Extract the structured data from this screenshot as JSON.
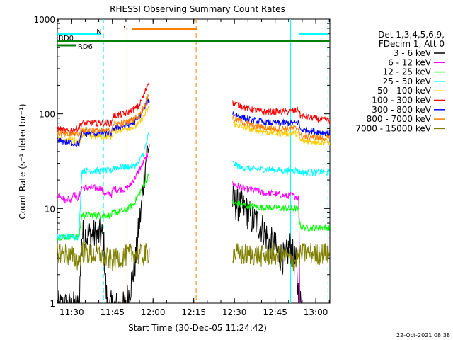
{
  "chart_data": {
    "type": "line",
    "title": "RHESSI Observing Summary Count Rates",
    "xlabel": "Start Time (30-Dec-05 11:24:42)",
    "ylabel": "Count Rate (s⁻¹ detector⁻¹)",
    "y_scale": "log",
    "ylim": [
      1,
      1000
    ],
    "xlim_minutes_from_start": [
      0,
      100.5
    ],
    "x_ticks": [
      {
        "label": "11:30",
        "t": 5.3
      },
      {
        "label": "11:45",
        "t": 20.3
      },
      {
        "label": "12:00",
        "t": 35.3
      },
      {
        "label": "12:15",
        "t": 50.3
      },
      {
        "label": "12:30",
        "t": 65.3
      },
      {
        "label": "12:45",
        "t": 80.3
      },
      {
        "label": "13:00",
        "t": 95.3
      }
    ],
    "y_ticks": [
      {
        "label": "1",
        "v": 1
      },
      {
        "label": "10",
        "v": 10
      },
      {
        "label": "100",
        "v": 100
      },
      {
        "label": "1000",
        "v": 1000
      }
    ],
    "legend_header": [
      "Det 1,3,4,5,6,9,",
      "FDecim 1, Att 0"
    ],
    "series": [
      {
        "name": "3 - 6 keV",
        "color": "#000000",
        "values": [
          [
            0,
            0.9
          ],
          [
            8,
            0.9
          ],
          [
            9,
            5.2
          ],
          [
            16,
            5.2
          ],
          [
            17,
            5.0
          ],
          [
            17.5,
            2.5
          ],
          [
            18,
            1.3
          ],
          [
            18.5,
            0.9
          ],
          [
            25,
            0.9
          ],
          [
            27,
            1.5
          ],
          [
            29,
            3
          ],
          [
            30,
            6
          ],
          [
            31,
            10
          ],
          [
            32,
            22
          ],
          [
            33,
            40
          ],
          [
            33.6,
            45
          ],
          [
            65,
            12
          ],
          [
            66,
            11
          ],
          [
            68,
            10.5
          ],
          [
            70,
            9
          ],
          [
            72,
            7.5
          ],
          [
            74,
            7
          ],
          [
            76,
            6
          ],
          [
            78,
            4.5
          ],
          [
            80,
            4
          ],
          [
            81,
            3.5
          ],
          [
            82,
            3.2
          ],
          [
            83,
            3
          ],
          [
            84,
            2.8
          ],
          [
            85,
            3.5
          ],
          [
            86,
            4
          ],
          [
            87,
            3
          ],
          [
            88,
            2.6
          ],
          [
            89,
            1.2
          ],
          [
            90,
            0.9
          ]
        ]
      },
      {
        "name": "6 - 12 keV",
        "color": "#ff00ff",
        "values": [
          [
            0,
            14
          ],
          [
            1,
            14
          ],
          [
            3,
            12
          ],
          [
            4,
            13
          ],
          [
            5,
            12
          ],
          [
            6,
            15
          ],
          [
            7,
            13
          ],
          [
            8,
            13
          ],
          [
            9,
            16.5
          ],
          [
            14,
            16.5
          ],
          [
            16,
            16.5
          ],
          [
            17,
            15
          ],
          [
            18,
            14
          ],
          [
            19,
            14.5
          ],
          [
            20,
            14
          ],
          [
            20.5,
            16
          ],
          [
            25,
            16
          ],
          [
            27,
            18
          ],
          [
            29,
            22
          ],
          [
            31,
            28
          ],
          [
            33,
            36
          ],
          [
            33.6,
            37
          ],
          [
            65,
            18
          ],
          [
            67,
            17
          ],
          [
            70,
            16
          ],
          [
            73,
            15.5
          ],
          [
            76,
            14.5
          ],
          [
            79,
            14.5
          ],
          [
            82,
            14
          ],
          [
            84,
            13.5
          ],
          [
            86,
            13.8
          ],
          [
            88,
            13.5
          ],
          [
            89,
            13
          ],
          [
            89.5,
            0.9
          ],
          [
            100.5,
            0.9
          ]
        ]
      },
      {
        "name": "12 - 25 keV",
        "color": "#00ff00",
        "values": [
          [
            0,
            5
          ],
          [
            8,
            5
          ],
          [
            9,
            8.5
          ],
          [
            16,
            8.5
          ],
          [
            20,
            8.5
          ],
          [
            20.5,
            9
          ],
          [
            25,
            9.5
          ],
          [
            28,
            11
          ],
          [
            30,
            14
          ],
          [
            32,
            18
          ],
          [
            33.6,
            22
          ],
          [
            65,
            11.5
          ],
          [
            68,
            11
          ],
          [
            72,
            10.5
          ],
          [
            76,
            10.2
          ],
          [
            80,
            10.2
          ],
          [
            85,
            10
          ],
          [
            88,
            10
          ],
          [
            89,
            9.5
          ],
          [
            89.6,
            6.5
          ],
          [
            92,
            6.2
          ],
          [
            96,
            6.3
          ],
          [
            100.5,
            6.3
          ]
        ]
      },
      {
        "name": "25 - 50 keV",
        "color": "#00ffff",
        "values": [
          [
            0,
            5
          ],
          [
            8,
            5
          ],
          [
            9,
            25
          ],
          [
            16,
            25
          ],
          [
            18,
            25
          ],
          [
            20,
            25
          ],
          [
            20.5,
            27
          ],
          [
            25,
            27.5
          ],
          [
            28,
            28
          ],
          [
            30,
            30
          ],
          [
            32,
            40
          ],
          [
            33.6,
            60
          ],
          [
            65,
            30
          ],
          [
            68,
            27
          ],
          [
            72,
            26
          ],
          [
            76,
            26
          ],
          [
            80,
            25.5
          ],
          [
            85,
            25
          ],
          [
            88,
            25.5
          ],
          [
            89,
            24.5
          ],
          [
            89.6,
            24
          ],
          [
            95,
            24
          ],
          [
            100.5,
            24
          ]
        ]
      },
      {
        "name": "50 - 100 keV",
        "color": "#ffcc00",
        "values": [
          [
            0,
            55
          ],
          [
            3,
            52
          ],
          [
            5,
            54
          ],
          [
            8,
            50
          ],
          [
            9,
            60
          ],
          [
            16,
            58
          ],
          [
            20,
            57
          ],
          [
            20.5,
            65
          ],
          [
            25,
            70
          ],
          [
            28,
            72
          ],
          [
            30,
            78
          ],
          [
            32,
            95
          ],
          [
            33.6,
            115
          ],
          [
            65,
            80
          ],
          [
            68,
            72
          ],
          [
            72,
            68
          ],
          [
            76,
            65
          ],
          [
            80,
            63
          ],
          [
            85,
            62
          ],
          [
            88,
            62
          ],
          [
            89,
            61
          ],
          [
            89.6,
            52
          ],
          [
            95,
            51
          ],
          [
            100.5,
            50
          ]
        ]
      },
      {
        "name": "100 - 300 keV",
        "color": "#ff0000",
        "values": [
          [
            0,
            70
          ],
          [
            4,
            65
          ],
          [
            8,
            72
          ],
          [
            9,
            80
          ],
          [
            16,
            80
          ],
          [
            20,
            80
          ],
          [
            20.5,
            95
          ],
          [
            25,
            100
          ],
          [
            28,
            110
          ],
          [
            30,
            120
          ],
          [
            32,
            160
          ],
          [
            33.6,
            220
          ],
          [
            65,
            130
          ],
          [
            68,
            120
          ],
          [
            72,
            110
          ],
          [
            76,
            105
          ],
          [
            80,
            105
          ],
          [
            85,
            105
          ],
          [
            88,
            108
          ],
          [
            89,
            112
          ],
          [
            89.6,
            95
          ],
          [
            92,
            93
          ],
          [
            96,
            88
          ],
          [
            100.5,
            85
          ]
        ]
      },
      {
        "name": "300 - 800 keV",
        "color": "#0000ff",
        "values": [
          [
            0,
            52
          ],
          [
            4,
            50
          ],
          [
            8,
            48
          ],
          [
            9,
            62
          ],
          [
            16,
            62
          ],
          [
            20,
            62
          ],
          [
            20.5,
            70
          ],
          [
            25,
            75
          ],
          [
            28,
            80
          ],
          [
            30,
            90
          ],
          [
            32,
            115
          ],
          [
            33.6,
            140
          ],
          [
            65,
            100
          ],
          [
            68,
            92
          ],
          [
            72,
            85
          ],
          [
            76,
            82
          ],
          [
            80,
            80
          ],
          [
            85,
            80
          ],
          [
            88,
            80
          ],
          [
            89,
            82
          ],
          [
            89.6,
            68
          ],
          [
            94,
            66
          ],
          [
            100.5,
            62
          ]
        ]
      },
      {
        "name": "800 - 7000 keV",
        "color": "#ff8000",
        "values": [
          [
            0,
            63
          ],
          [
            4,
            60
          ],
          [
            8,
            62
          ],
          [
            9,
            68
          ],
          [
            16,
            66
          ],
          [
            20,
            66
          ],
          [
            20.5,
            78
          ],
          [
            25,
            80
          ],
          [
            28,
            88
          ],
          [
            30,
            95
          ],
          [
            32,
            120
          ],
          [
            33.6,
            160
          ],
          [
            65,
            90
          ],
          [
            68,
            82
          ],
          [
            72,
            75
          ],
          [
            76,
            72
          ],
          [
            80,
            70
          ],
          [
            85,
            70
          ],
          [
            88,
            70
          ],
          [
            89,
            72
          ],
          [
            89.6,
            58
          ],
          [
            94,
            57
          ],
          [
            100.5,
            55
          ]
        ]
      },
      {
        "name": "7000 - 15000 keV",
        "color": "#808000",
        "values": [
          [
            0,
            3.5
          ],
          [
            3,
            3.3
          ],
          [
            6,
            3.0
          ],
          [
            8,
            2.8
          ],
          [
            9,
            3.5
          ],
          [
            12,
            3.3
          ],
          [
            16,
            3.2
          ],
          [
            18,
            3.0
          ],
          [
            20,
            2.8
          ],
          [
            24,
            3.1
          ],
          [
            28,
            3.3
          ],
          [
            32,
            3.2
          ],
          [
            33.6,
            3.4
          ],
          [
            65,
            3.4
          ],
          [
            68,
            3.2
          ],
          [
            72,
            3.3
          ],
          [
            76,
            3.1
          ],
          [
            80,
            3.3
          ],
          [
            85,
            3.0
          ],
          [
            88,
            2.8
          ],
          [
            89,
            3.2
          ],
          [
            92,
            3.4
          ],
          [
            96,
            3.3
          ],
          [
            100.5,
            3.4
          ]
        ]
      }
    ],
    "annotations": {
      "flags": [
        {
          "label": "N",
          "color": "#00ffff",
          "segments": [
            [
              0,
              16
            ],
            [
              89,
              100
            ]
          ]
        },
        {
          "label": "S",
          "color": "#ff8000",
          "segments": [
            [
              27.5,
              51.5
            ]
          ]
        },
        {
          "label": "RD0",
          "color": "#008000",
          "segments": [
            [
              0,
              100.5
            ]
          ]
        },
        {
          "label": "RD6",
          "color": "#008000",
          "segments": [
            [
              0,
              7
            ]
          ]
        }
      ],
      "vlines": [
        {
          "t": 17.0,
          "color": "#00ffff",
          "style": "dashed"
        },
        {
          "t": 25.7,
          "color": "#ff8000",
          "style": "solid"
        },
        {
          "t": 51.2,
          "color": "#ff8000",
          "style": "dashed"
        },
        {
          "t": 86.0,
          "color": "#00ffff",
          "style": "solid"
        },
        {
          "t": 99.8,
          "color": "#00ffff",
          "style": "dashed"
        }
      ]
    },
    "footer_stamp": "22-Oct-2021 08:38"
  }
}
